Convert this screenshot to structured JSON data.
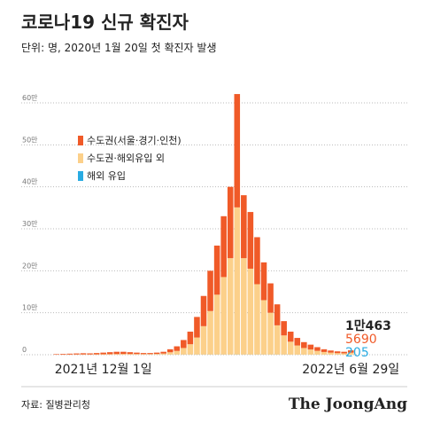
{
  "chart_data": {
    "type": "stacked_bar",
    "title": "코로나19 신규 확진자",
    "subtitle": "단위: 명, 2020년 1월 20일 첫 확진자 발생",
    "source": "자료: 질병관리청",
    "brand": "The JoongAng",
    "categories": [
      null,
      null,
      null,
      null,
      null,
      null,
      null,
      "2021년 12월 1일",
      null,
      null,
      null,
      null,
      null,
      null,
      null,
      null,
      null,
      null,
      null,
      null,
      null,
      null,
      null,
      null,
      null,
      null,
      null,
      null,
      null,
      null,
      null,
      null,
      null,
      null,
      null,
      null,
      null,
      null,
      null,
      null,
      null,
      null,
      null,
      null,
      "2022년 6월 29일"
    ],
    "series": [
      {
        "name": "수도권(서울·경기·인천)",
        "color": "#f05a28",
        "values": [
          1200,
          1600,
          2000,
          2400,
          2800,
          2560,
          3200,
          3900,
          4700,
          5400,
          5200,
          4300,
          3400,
          2600,
          2500,
          3100,
          4200,
          7200,
          11000,
          19000,
          30000,
          49000,
          72000,
          96000,
          117000,
          145000,
          170000,
          270000,
          150000,
          135000,
          112000,
          90000,
          70000,
          50000,
          34000,
          24000,
          18000,
          14000,
          11500,
          8800,
          6500,
          5000,
          4200,
          3700,
          5690
        ]
      },
      {
        "name": "수도권·해외유입 외",
        "color": "#fcd08a",
        "values": [
          270,
          370,
          470,
          570,
          670,
          610,
          760,
          1050,
          1240,
          1530,
          1720,
          1610,
          1450,
          1200,
          1250,
          1600,
          2500,
          5500,
          8700,
          15700,
          24700,
          40700,
          67700,
          103700,
          142700,
          184700,
          229700,
          350600,
          229700,
          204700,
          167700,
          129700,
          99700,
          69700,
          45700,
          30800,
          21800,
          15800,
          12300,
          9000,
          6300,
          4800,
          3600,
          3100,
          4568
        ]
      },
      {
        "name": "해외 유입",
        "color": "#29abe2",
        "values": [
          30,
          30,
          30,
          30,
          30,
          30,
          40,
          50,
          60,
          70,
          80,
          90,
          150,
          200,
          250,
          300,
          300,
          300,
          300,
          300,
          300,
          300,
          300,
          300,
          300,
          300,
          300,
          400,
          300,
          300,
          300,
          300,
          300,
          300,
          300,
          200,
          200,
          200,
          200,
          200,
          200,
          200,
          200,
          200,
          205
        ]
      }
    ],
    "annotations": [
      "1만463",
      "5690",
      "205"
    ],
    "ylim": [
      0,
      600000
    ],
    "yticks": [
      0,
      {
        "value": 100000,
        "label": "10만"
      },
      {
        "value": 200000,
        "label": "20만"
      },
      {
        "value": 300000,
        "label": "30만"
      },
      {
        "value": 400000,
        "label": "40만"
      },
      {
        "value": 500000,
        "label": "50만"
      },
      {
        "value": 600000,
        "label": "60만"
      }
    ],
    "grid": true
  }
}
